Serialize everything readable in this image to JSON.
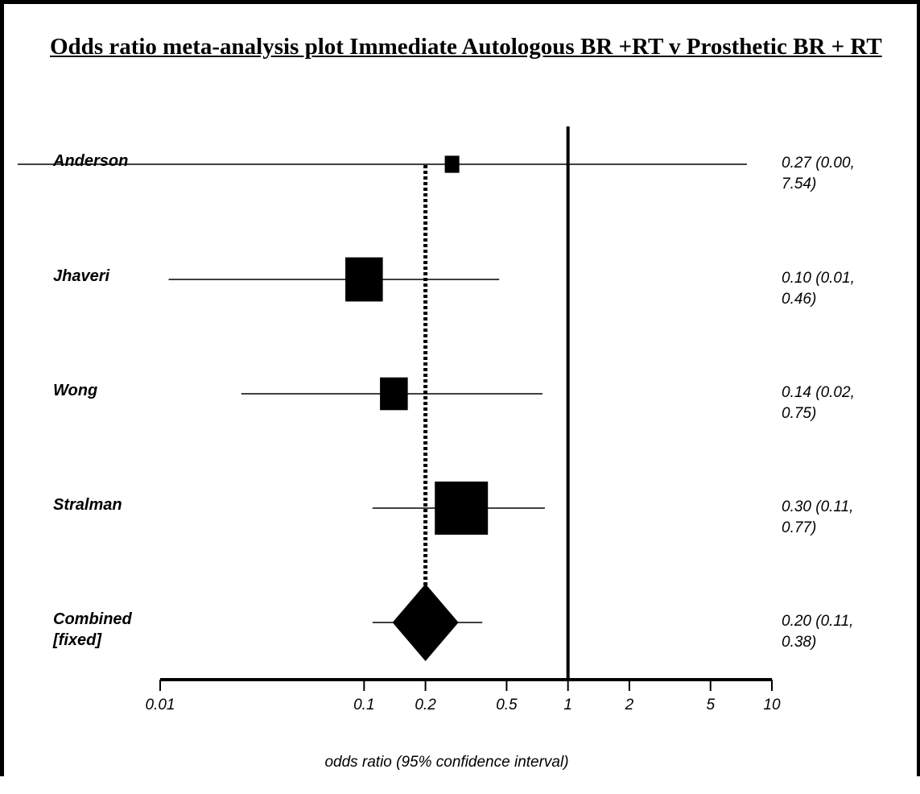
{
  "title": "Odds ratio meta-analysis plot Immediate Autologous BR +RT v Prosthetic BR + RT",
  "chart_data": {
    "type": "forest",
    "title": "Odds ratio meta-analysis plot Immediate Autologous BR +RT v Prosthetic BR + RT",
    "xlabel": "odds ratio (95% confidence interval)",
    "x_scale": "log",
    "xlim": [
      0.01,
      10
    ],
    "x_ticks": [
      0.01,
      0.1,
      0.2,
      0.5,
      1,
      2,
      5,
      10
    ],
    "x_tick_labels": [
      "0.01",
      "0.1",
      "0.2",
      "0.5",
      "1",
      "2",
      "5",
      "10"
    ],
    "reference_line": 1,
    "pooled_line": 0.2,
    "studies": [
      {
        "name": "Anderson",
        "or": 0.27,
        "lower": 0.002,
        "upper": 7.54,
        "weight": 0.15,
        "label": "0.27 (0.00, 7.54)"
      },
      {
        "name": "Jhaveri",
        "or": 0.1,
        "lower": 0.011,
        "upper": 0.46,
        "weight": 1.0,
        "label": "0.10 (0.01, 0.46)"
      },
      {
        "name": "Wong",
        "or": 0.14,
        "lower": 0.025,
        "upper": 0.75,
        "weight": 0.55,
        "label": "0.14 (0.02, 0.75)"
      },
      {
        "name": "Stralman",
        "or": 0.3,
        "lower": 0.11,
        "upper": 0.77,
        "weight": 1.45,
        "label": "0.30 (0.11, 0.77)"
      }
    ],
    "combined": {
      "name": "Combined [fixed]",
      "or": 0.2,
      "lower": 0.11,
      "upper": 0.38,
      "label": "0.20 (0.11, 0.38)"
    }
  }
}
